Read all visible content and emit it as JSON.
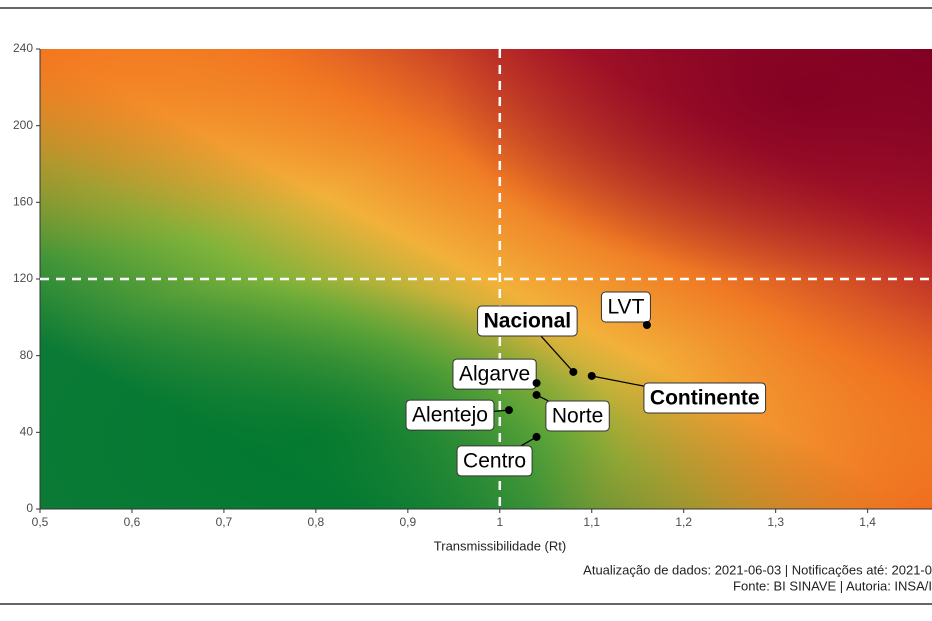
{
  "chart_data": {
    "type": "scatter",
    "x_label": "Transmissibilidade (Rt)",
    "footer": [
      "Atualização de dados: 2021-06-03 | Notificações até: 2021-0",
      "Fonte: BI SINAVE | Autoria: INSA/I"
    ],
    "xlim": [
      0.5,
      1.47
    ],
    "ylim": [
      0,
      240
    ],
    "xticks": [
      {
        "value": 0.5,
        "label": "0,5"
      },
      {
        "value": 0.6,
        "label": "0,6"
      },
      {
        "value": 0.7,
        "label": "0,7"
      },
      {
        "value": 0.8,
        "label": "0,8"
      },
      {
        "value": 0.9,
        "label": "0,9"
      },
      1,
      {
        "value": 1.1,
        "label": "1,1"
      },
      {
        "value": 1.2,
        "label": "1,2"
      },
      {
        "value": 1.3,
        "label": "1,3"
      },
      {
        "value": 1.4,
        "label": "1,4"
      }
    ],
    "yticks": [
      0,
      40,
      80,
      120,
      160,
      200,
      240
    ],
    "thresholds": {
      "x": 1,
      "y": 120
    },
    "point_color": "#000000",
    "points": [
      {
        "label": "Nacional",
        "x": 1.08,
        "y": 71.5,
        "bold": true
      },
      {
        "label": "LVT",
        "x": 1.16,
        "y": 96,
        "bold": false
      },
      {
        "label": "Algarve",
        "x": 1.04,
        "y": 65.7,
        "bold": false
      },
      {
        "label": "Continente",
        "x": 1.1,
        "y": 69.4,
        "bold": true
      },
      {
        "label": "Alentejo",
        "x": 1.01,
        "y": 51.6,
        "bold": false
      },
      {
        "label": "Norte",
        "x": 1.04,
        "y": 59.5,
        "bold": false
      },
      {
        "label": "Centro",
        "x": 1.04,
        "y": 37.6,
        "bold": false
      }
    ]
  }
}
